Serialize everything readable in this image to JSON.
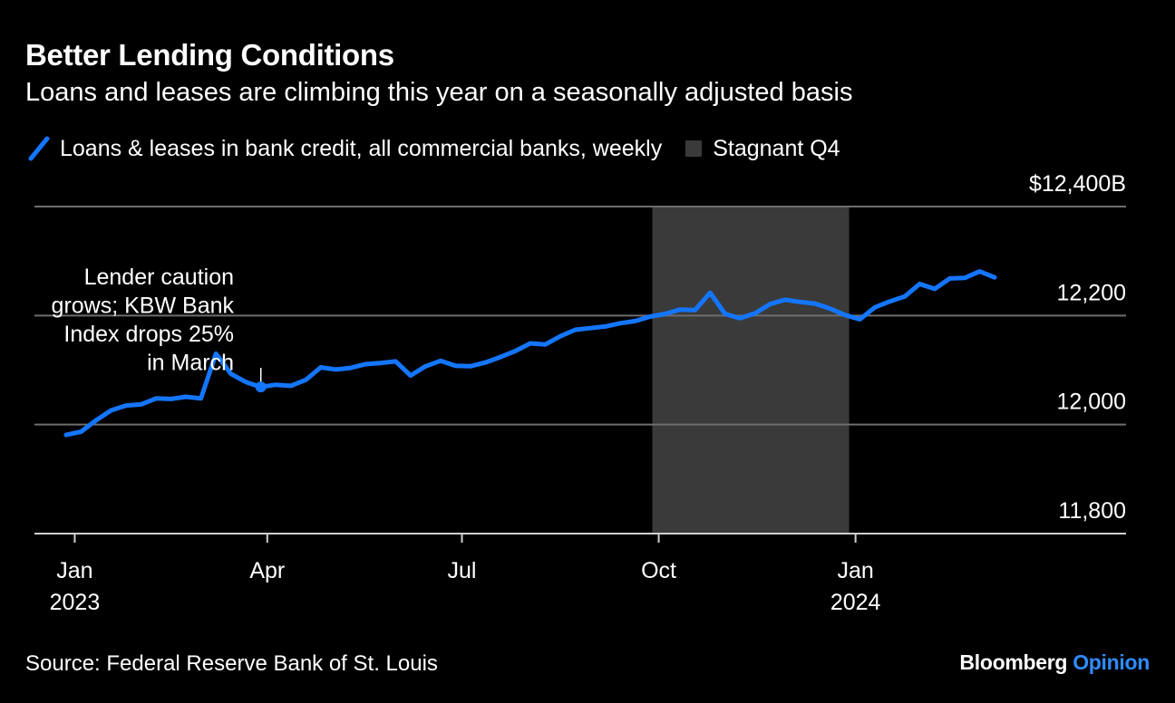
{
  "colors": {
    "background": "#000000",
    "line": "#1476ff",
    "shade": "#3a3a3a",
    "grid": "#6e6e6e",
    "text": "#ffffff",
    "brand_accent": "#2f8cff"
  },
  "header": {
    "title": "Better Lending Conditions",
    "subtitle": "Loans and leases are climbing this year on a seasonally adjusted basis"
  },
  "legend": {
    "series_label": "Loans & leases in bank credit, all commercial banks, weekly",
    "shade_label": "Stagnant Q4"
  },
  "footer": {
    "source": "Source: Federal Reserve Bank of St. Louis",
    "brand_main": "Bloomberg",
    "brand_accent": "Opinion"
  },
  "chart_data": {
    "type": "line",
    "title": "Better Lending Conditions",
    "subtitle": "Loans and leases are climbing this year on a seasonally adjusted basis",
    "y_unit": "$ billions",
    "ylim": [
      11800,
      12400
    ],
    "y_ticks": [
      {
        "value": 12400,
        "label": "$12,400B"
      },
      {
        "value": 12200,
        "label": "12,200"
      },
      {
        "value": 12000,
        "label": "12,000"
      },
      {
        "value": 11800,
        "label": "11,800"
      }
    ],
    "xlim": [
      "2022-12-28",
      "2024-03-20"
    ],
    "x_ticks": [
      {
        "date": "2023-01-01",
        "line1": "Jan",
        "line2": "2023"
      },
      {
        "date": "2023-04-01",
        "line1": "Apr",
        "line2": ""
      },
      {
        "date": "2023-07-01",
        "line1": "Jul",
        "line2": ""
      },
      {
        "date": "2023-10-01",
        "line1": "Oct",
        "line2": ""
      },
      {
        "date": "2024-01-01",
        "line1": "Jan",
        "line2": "2024"
      }
    ],
    "grid": true,
    "legend_position": "top-left",
    "shaded_region": {
      "label": "Stagnant Q4",
      "start": "2023-09-28",
      "end": "2023-12-29"
    },
    "annotation": {
      "lines": [
        "Lender caution",
        "grows; KBW Bank",
        "Index drops 25%",
        "in March"
      ],
      "date": "2023-03-29",
      "value": 12069
    },
    "series": [
      {
        "name": "Loans & leases in bank credit, all commercial banks, weekly",
        "x": [
          "2022-12-28",
          "2023-01-04",
          "2023-01-11",
          "2023-01-18",
          "2023-01-25",
          "2023-02-01",
          "2023-02-08",
          "2023-02-15",
          "2023-02-22",
          "2023-03-01",
          "2023-03-08",
          "2023-03-15",
          "2023-03-22",
          "2023-03-29",
          "2023-04-05",
          "2023-04-12",
          "2023-04-19",
          "2023-04-26",
          "2023-05-03",
          "2023-05-10",
          "2023-05-17",
          "2023-05-24",
          "2023-05-31",
          "2023-06-07",
          "2023-06-14",
          "2023-06-21",
          "2023-06-28",
          "2023-07-05",
          "2023-07-12",
          "2023-07-19",
          "2023-07-26",
          "2023-08-02",
          "2023-08-09",
          "2023-08-16",
          "2023-08-23",
          "2023-08-30",
          "2023-09-06",
          "2023-09-13",
          "2023-09-20",
          "2023-09-27",
          "2023-10-04",
          "2023-10-11",
          "2023-10-18",
          "2023-10-25",
          "2023-11-01",
          "2023-11-08",
          "2023-11-15",
          "2023-11-22",
          "2023-11-29",
          "2023-12-06",
          "2023-12-13",
          "2023-12-20",
          "2023-12-27",
          "2024-01-03",
          "2024-01-10",
          "2024-01-17",
          "2024-01-24",
          "2024-01-31",
          "2024-02-07",
          "2024-02-14",
          "2024-02-21",
          "2024-02-28",
          "2024-03-06"
        ],
        "values": [
          11981,
          11987,
          12008,
          12026,
          12035,
          12037,
          12048,
          12047,
          12051,
          12048,
          12130,
          12093,
          12078,
          12069,
          12073,
          12071,
          12082,
          12105,
          12101,
          12104,
          12111,
          12113,
          12116,
          12090,
          12107,
          12117,
          12108,
          12107,
          12114,
          12124,
          12135,
          12149,
          12147,
          12162,
          12174,
          12177,
          12180,
          12186,
          12190,
          12198,
          12203,
          12211,
          12210,
          12242,
          12203,
          12195,
          12204,
          12221,
          12229,
          12225,
          12222,
          12213,
          12201,
          12193,
          12215,
          12226,
          12235,
          12258,
          12249,
          12268,
          12269,
          12281,
          12270
        ]
      }
    ]
  }
}
